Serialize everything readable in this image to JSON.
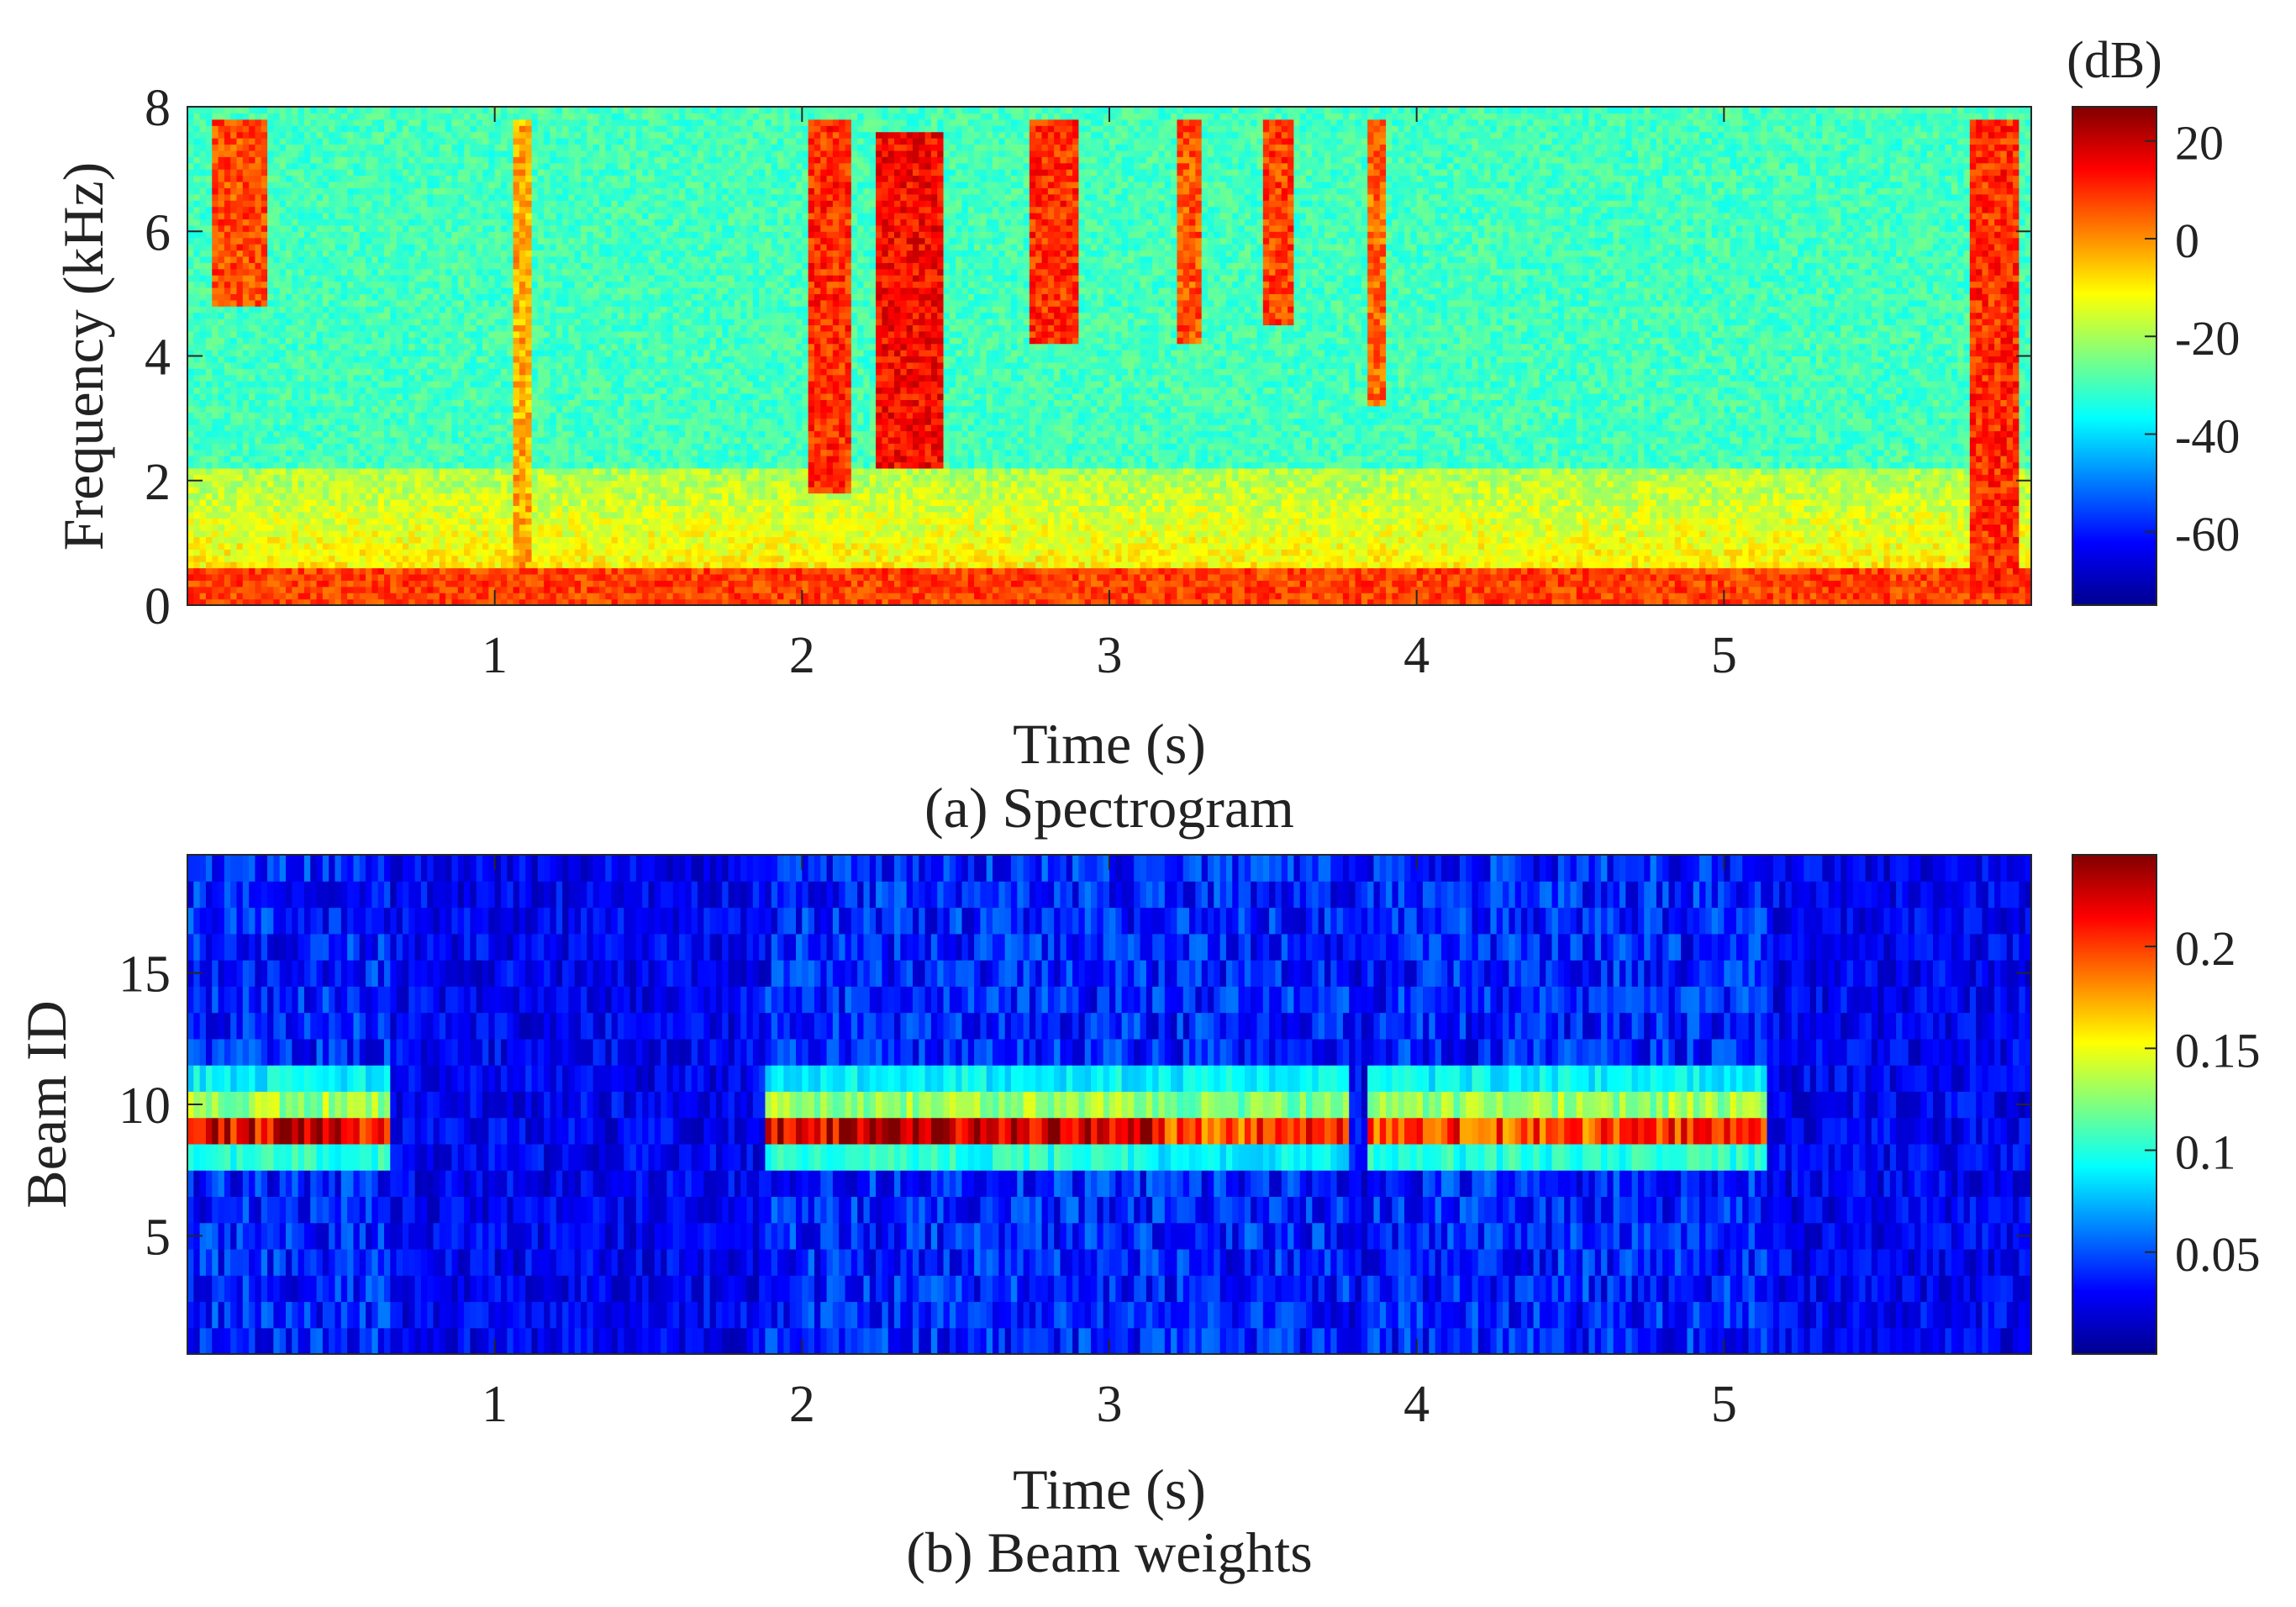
{
  "chart_data": [
    {
      "type": "heatmap",
      "caption": "(a) Spectrogram",
      "xlabel": "Time (s)",
      "ylabel": "Frequency (kHz)",
      "xlim": [
        0,
        6
      ],
      "ylim": [
        0,
        8
      ],
      "xticks": [
        1,
        2,
        3,
        4,
        5
      ],
      "yticks": [
        0,
        2,
        4,
        6,
        8
      ],
      "grid": false,
      "colormap": "jet",
      "colorbar": {
        "unit_label": "(dB)",
        "range": [
          -75,
          27
        ],
        "ticks": [
          20,
          0,
          -20,
          -40,
          -60
        ]
      },
      "energy_bursts": [
        {
          "time": [
            0.08,
            0.25
          ],
          "freq_khz": [
            4.8,
            7.8
          ],
          "level_db": 15
        },
        {
          "time": [
            1.05,
            1.12
          ],
          "freq_khz": [
            0.5,
            7.8
          ],
          "level_db": 5
        },
        {
          "time": [
            2.03,
            2.15
          ],
          "freq_khz": [
            1.8,
            7.8
          ],
          "level_db": 18
        },
        {
          "time": [
            2.25,
            2.45
          ],
          "freq_khz": [
            2.2,
            7.6
          ],
          "level_db": 22
        },
        {
          "time": [
            2.75,
            2.9
          ],
          "freq_khz": [
            4.2,
            7.8
          ],
          "level_db": 18
        },
        {
          "time": [
            3.22,
            3.3
          ],
          "freq_khz": [
            4.2,
            7.8
          ],
          "level_db": 14
        },
        {
          "time": [
            3.5,
            3.6
          ],
          "freq_khz": [
            4.5,
            7.8
          ],
          "level_db": 16
        },
        {
          "time": [
            3.85,
            3.9
          ],
          "freq_khz": [
            3.2,
            7.8
          ],
          "level_db": 12
        },
        {
          "time": [
            5.8,
            5.95
          ],
          "freq_khz": [
            0.2,
            7.8
          ],
          "level_db": 18
        }
      ]
    },
    {
      "type": "heatmap",
      "caption": "(b) Beam weights",
      "xlabel": "Time (s)",
      "ylabel": "Beam ID",
      "xlim": [
        0,
        6
      ],
      "ylim": [
        0.5,
        19.5
      ],
      "xticks": [
        1,
        2,
        3,
        4,
        5
      ],
      "yticks": [
        5,
        10,
        15
      ],
      "grid": false,
      "colormap": "jet",
      "colorbar": {
        "range": [
          0.0,
          0.245
        ],
        "ticks": [
          0.2,
          0.15,
          0.1,
          0.05
        ]
      },
      "beams": [
        1,
        2,
        3,
        4,
        5,
        6,
        7,
        8,
        9,
        10,
        11,
        12,
        13,
        14,
        15,
        16,
        17,
        18,
        19
      ],
      "active_segments": [
        {
          "time": [
            0.0,
            0.65
          ],
          "beam_weights": {
            "8": 0.1,
            "9": 0.22,
            "10": 0.13,
            "11": 0.09
          }
        },
        {
          "time": [
            1.87,
            3.15
          ],
          "beam_weights": {
            "8": 0.1,
            "9": 0.23,
            "10": 0.13,
            "11": 0.09
          }
        },
        {
          "time": [
            3.15,
            3.78
          ],
          "beam_weights": {
            "8": 0.09,
            "9": 0.2,
            "10": 0.12,
            "11": 0.09
          }
        },
        {
          "time": [
            3.85,
            5.13
          ],
          "beam_weights": {
            "8": 0.1,
            "9": 0.2,
            "10": 0.13,
            "11": 0.09
          }
        }
      ],
      "background_weight": 0.02
    }
  ]
}
